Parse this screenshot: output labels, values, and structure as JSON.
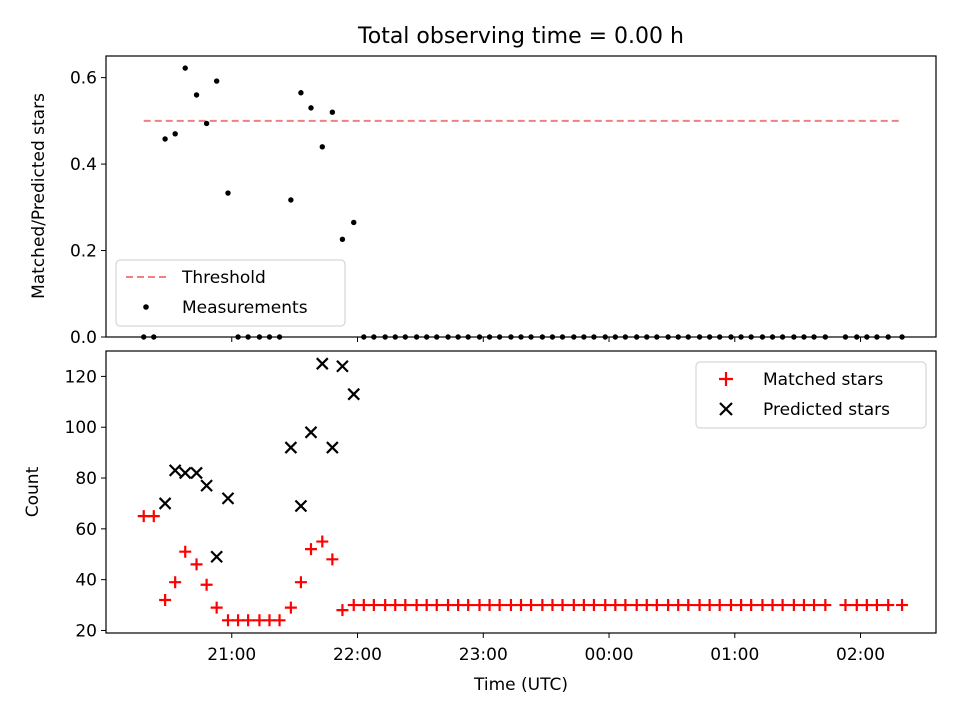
{
  "chart_data": [
    {
      "type": "scatter",
      "title": "Total observing time = 0.00 h",
      "xlabel": "",
      "ylabel": "Matched/Predicted stars",
      "x_unit": "UTC time (hours after 20:00)",
      "xlim": [
        0.0,
        6.6
      ],
      "ylim": [
        0.0,
        0.65
      ],
      "yticks": [
        0.0,
        0.2,
        0.4,
        0.6
      ],
      "ytick_labels": [
        "0.0",
        "0.2",
        "0.4",
        "0.6"
      ],
      "grid": false,
      "legend_position": "lower-left",
      "series": [
        {
          "name": "Threshold",
          "kind": "dashed-line",
          "color": "#f08080",
          "x": [
            0.3,
            6.33
          ],
          "y": [
            0.5,
            0.5
          ]
        },
        {
          "name": "Measurements",
          "kind": "points",
          "color": "#000000",
          "x": [
            0.3,
            0.38,
            0.47,
            0.55,
            0.63,
            0.72,
            0.8,
            0.88,
            0.97,
            1.05,
            1.13,
            1.22,
            1.3,
            1.38,
            1.47,
            1.55,
            1.63,
            1.72,
            1.8,
            1.88,
            1.97,
            2.05,
            2.13,
            2.22,
            2.3,
            2.38,
            2.47,
            2.55,
            2.63,
            2.72,
            2.8,
            2.88,
            2.97,
            3.05,
            3.13,
            3.22,
            3.3,
            3.38,
            3.47,
            3.55,
            3.63,
            3.72,
            3.8,
            3.88,
            3.97,
            4.05,
            4.13,
            4.22,
            4.3,
            4.38,
            4.47,
            4.55,
            4.63,
            4.72,
            4.8,
            4.88,
            4.97,
            5.05,
            5.13,
            5.22,
            5.3,
            5.38,
            5.47,
            5.55,
            5.63,
            5.72,
            5.88,
            5.97,
            6.05,
            6.13,
            6.22,
            6.33
          ],
          "y": [
            0.0,
            0.0,
            0.458,
            0.47,
            0.622,
            0.56,
            0.494,
            0.592,
            0.333,
            0.0,
            0.0,
            0.0,
            0.0,
            0.0,
            0.317,
            0.565,
            0.53,
            0.44,
            0.52,
            0.226,
            0.265,
            0.0,
            0.0,
            0.0,
            0.0,
            0.0,
            0.0,
            0.0,
            0.0,
            0.0,
            0.0,
            0.0,
            0.0,
            0.0,
            0.0,
            0.0,
            0.0,
            0.0,
            0.0,
            0.0,
            0.0,
            0.0,
            0.0,
            0.0,
            0.0,
            0.0,
            0.0,
            0.0,
            0.0,
            0.0,
            0.0,
            0.0,
            0.0,
            0.0,
            0.0,
            0.0,
            0.0,
            0.0,
            0.0,
            0.0,
            0.0,
            0.0,
            0.0,
            0.0,
            0.0,
            0.0,
            0.0,
            0.0,
            0.0,
            0.0,
            0.0,
            0.0
          ]
        }
      ]
    },
    {
      "type": "scatter",
      "title": "",
      "xlabel": "Time (UTC)",
      "ylabel": "Count",
      "x_unit": "UTC time (hours after 20:00)",
      "xlim": [
        0.0,
        6.6
      ],
      "ylim": [
        19,
        130
      ],
      "xticks": [
        1,
        2,
        3,
        4,
        5,
        6
      ],
      "xtick_labels": [
        "21:00",
        "22:00",
        "23:00",
        "00:00",
        "01:00",
        "02:00"
      ],
      "yticks": [
        20,
        40,
        60,
        80,
        100,
        120
      ],
      "ytick_labels": [
        "20",
        "40",
        "60",
        "80",
        "100",
        "120"
      ],
      "grid": false,
      "legend_position": "top-right",
      "series": [
        {
          "name": "Matched stars",
          "marker": "plus",
          "color": "#ff0000",
          "x": [
            0.3,
            0.38,
            0.47,
            0.55,
            0.63,
            0.72,
            0.8,
            0.88,
            0.97,
            1.05,
            1.13,
            1.22,
            1.3,
            1.38,
            1.47,
            1.55,
            1.63,
            1.72,
            1.8,
            1.88,
            1.97,
            2.05,
            2.13,
            2.22,
            2.3,
            2.38,
            2.47,
            2.55,
            2.63,
            2.72,
            2.8,
            2.88,
            2.97,
            3.05,
            3.13,
            3.22,
            3.3,
            3.38,
            3.47,
            3.55,
            3.63,
            3.72,
            3.8,
            3.88,
            3.97,
            4.05,
            4.13,
            4.22,
            4.3,
            4.38,
            4.47,
            4.55,
            4.63,
            4.72,
            4.8,
            4.88,
            4.97,
            5.05,
            5.13,
            5.22,
            5.3,
            5.38,
            5.47,
            5.55,
            5.63,
            5.72,
            5.88,
            5.97,
            6.05,
            6.13,
            6.22,
            6.33
          ],
          "y": [
            65,
            65,
            32,
            39,
            51,
            46,
            38,
            29,
            24,
            24,
            24,
            24,
            24,
            24,
            29,
            39,
            52,
            55,
            48,
            28,
            30,
            30,
            30,
            30,
            30,
            30,
            30,
            30,
            30,
            30,
            30,
            30,
            30,
            30,
            30,
            30,
            30,
            30,
            30,
            30,
            30,
            30,
            30,
            30,
            30,
            30,
            30,
            30,
            30,
            30,
            30,
            30,
            30,
            30,
            30,
            30,
            30,
            30,
            30,
            30,
            30,
            30,
            30,
            30,
            30,
            30,
            30,
            30,
            30,
            30,
            30,
            30
          ]
        },
        {
          "name": "Predicted stars",
          "marker": "x",
          "color": "#000000",
          "x": [
            0.47,
            0.55,
            0.63,
            0.72,
            0.8,
            0.88,
            0.97,
            1.47,
            1.55,
            1.63,
            1.72,
            1.8,
            1.88,
            1.97
          ],
          "y": [
            70,
            83,
            82,
            82,
            77,
            49,
            72,
            92,
            69,
            98,
            125,
            92,
            124,
            113
          ]
        }
      ]
    }
  ]
}
